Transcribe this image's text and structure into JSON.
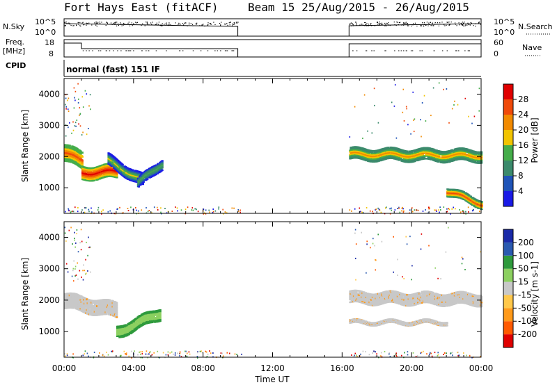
{
  "header": {
    "station": "Fort Hays East (fitACF)",
    "beam_date": "Beam 15 25/Aug/2015 - 26/Aug/2015"
  },
  "strips": {
    "nsky_label": "N.Sky",
    "nsearch_label": "N.Search",
    "log_top": "10^5",
    "log_bottom": "10^0",
    "freq_label": "Freq.",
    "freq_unit": "[MHz]",
    "freq_ticks": [
      "18",
      "8"
    ],
    "nave_label": "Nave",
    "nave_ticks": [
      "60",
      "0"
    ],
    "cpid_label": "CPID",
    "cpid_value": "normal (fast) 151 IF"
  },
  "colors": {
    "power": [
      "#1a1ae6",
      "#1f54b8",
      "#3b8a6c",
      "#45ad4a",
      "#f2c400",
      "#f28a00",
      "#f04a0a",
      "#e00000"
    ],
    "velocity": [
      "#e00000",
      "#ff5a00",
      "#ff9a1a",
      "#ffc84a",
      "#c8c8c8",
      "#8cd060",
      "#2e9a3c",
      "#2a5ab0",
      "#1a2aa8"
    ],
    "ground": "#b8b8b8"
  },
  "chart_data": [
    {
      "type": "heatmap",
      "panel": "power",
      "ylabel": "Slant Range [km]",
      "y_ticks": [
        1000,
        2000,
        3000,
        4000
      ],
      "ylim": [
        180,
        4500
      ],
      "x_ticks": [
        "00:00",
        "04:00",
        "08:00",
        "12:00",
        "16:00",
        "20:00",
        "00:00"
      ],
      "xlim_hours": [
        0,
        24
      ],
      "colorbar": {
        "label": "Power [dB]",
        "ticks": [
          "4",
          "8",
          "12",
          "16",
          "20",
          "24",
          "28"
        ],
        "range": [
          0,
          32
        ]
      },
      "data_gap_hours": [
        10.0,
        16.4
      ],
      "bands": [
        {
          "t": [
            0.0,
            1.0
          ],
          "center_km": [
            2150,
            1900
          ],
          "width_km": 500,
          "power_db": 24
        },
        {
          "t": [
            1.0,
            3.0
          ],
          "center_km": [
            1500,
            1550
          ],
          "width_km": 400,
          "power_db": 26
        },
        {
          "t": [
            2.5,
            4.5
          ],
          "center_km": [
            1900,
            1250
          ],
          "width_km": 350,
          "power_db": 14
        },
        {
          "t": [
            4.2,
            5.6
          ],
          "center_km": [
            1150,
            1800
          ],
          "width_km": 300,
          "power_db": 13
        },
        {
          "t": [
            16.4,
            24.0
          ],
          "center_km": [
            2100,
            2050
          ],
          "width_km": 350,
          "power_db": 20
        },
        {
          "t": [
            22.0,
            24.0
          ],
          "center_km": [
            900,
            500
          ],
          "width_km": 250,
          "power_db": 22
        }
      ]
    },
    {
      "type": "heatmap",
      "panel": "velocity",
      "ylabel": "Slant Range [km]",
      "y_ticks": [
        1000,
        2000,
        3000,
        4000
      ],
      "ylim": [
        180,
        4500
      ],
      "x_ticks": [
        "00:00",
        "04:00",
        "08:00",
        "12:00",
        "16:00",
        "20:00",
        "00:00"
      ],
      "xlim_hours": [
        0,
        24
      ],
      "xlabel": "Time UT",
      "colorbar": {
        "label": "Velocity [m s-1]",
        "ticks": [
          "200",
          "100",
          "50",
          "15",
          "-15",
          "-50",
          "-100",
          "-200"
        ],
        "range": [
          -250,
          250
        ]
      },
      "data_gap_hours": [
        10.0,
        16.4
      ],
      "bands": [
        {
          "t": [
            0.0,
            3.0
          ],
          "center_km": [
            2000,
            1700
          ],
          "width_km": 450,
          "velocity": 0
        },
        {
          "t": [
            3.0,
            5.5
          ],
          "center_km": [
            1000,
            1600
          ],
          "width_km": 350,
          "velocity": 60
        },
        {
          "t": [
            16.4,
            24.0
          ],
          "center_km": [
            2100,
            2050
          ],
          "width_km": 350,
          "velocity": 0
        },
        {
          "t": [
            16.4,
            22.0
          ],
          "center_km": [
            1300,
            1300
          ],
          "width_km": 120,
          "velocity": 0
        }
      ]
    }
  ]
}
